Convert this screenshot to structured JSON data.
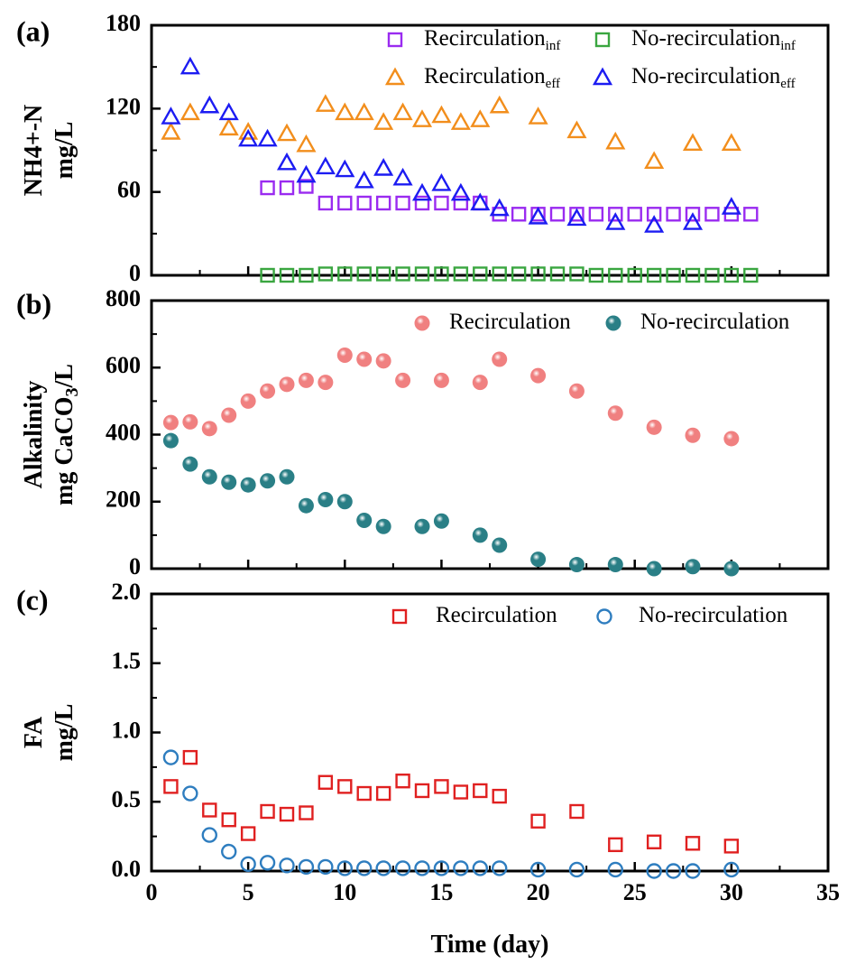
{
  "chart_data": [
    {
      "type": "scatter",
      "panel": "(a)",
      "ylabel_line1": "NH4+-N",
      "ylabel_line2": "mg/L",
      "xlim": [
        0,
        35
      ],
      "ylim": [
        0,
        180
      ],
      "yticks": [
        0,
        60,
        120,
        180
      ],
      "legend_position": "top-right",
      "series": [
        {
          "name": "Recirculation",
          "sub": "inf",
          "marker": "square",
          "color": "#9a2bf0",
          "x": [
            6,
            7,
            8,
            9,
            10,
            11,
            12,
            13,
            14,
            15,
            16,
            17,
            18,
            19,
            20,
            21,
            22,
            23,
            24,
            25,
            26,
            27,
            28,
            29,
            30,
            31
          ],
          "y": [
            63,
            63,
            64,
            52,
            52,
            52,
            52,
            52,
            52,
            52,
            52,
            52,
            44,
            44,
            44,
            44,
            44,
            44,
            44,
            44,
            44,
            44,
            44,
            44,
            44,
            44
          ]
        },
        {
          "name": "Recirculation",
          "sub": "eff",
          "marker": "triangle",
          "color": "#f28e1c",
          "x": [
            1,
            2,
            4,
            5,
            7,
            8,
            9,
            10,
            11,
            12,
            13,
            14,
            15,
            16,
            17,
            18,
            20,
            22,
            24,
            26,
            28,
            30
          ],
          "y": [
            103,
            117,
            106,
            103,
            102,
            94,
            123,
            117,
            117,
            110,
            117,
            112,
            115,
            110,
            112,
            122,
            114,
            104,
            96,
            82,
            95,
            95
          ]
        },
        {
          "name": "No-recirculation",
          "sub": "inf",
          "marker": "square",
          "color": "#3aa640",
          "x": [
            6,
            7,
            8,
            9,
            10,
            11,
            12,
            13,
            14,
            15,
            16,
            17,
            18,
            19,
            20,
            21,
            22,
            23,
            24,
            25,
            26,
            27,
            28,
            29,
            30,
            31
          ],
          "y": [
            0,
            0,
            0,
            1,
            1,
            1,
            1,
            1,
            1,
            1,
            1,
            1,
            1,
            1,
            1,
            1,
            1,
            0,
            0,
            0,
            0,
            0,
            0,
            0,
            0,
            0
          ]
        },
        {
          "name": "No-recirculation",
          "sub": "eff",
          "marker": "triangle",
          "color": "#1c1cf2",
          "x": [
            1,
            2,
            3,
            4,
            5,
            6,
            7,
            8,
            9,
            10,
            11,
            12,
            13,
            14,
            15,
            16,
            17,
            18,
            20,
            22,
            24,
            26,
            28,
            30
          ],
          "y": [
            114,
            150,
            122,
            117,
            98,
            98,
            81,
            72,
            78,
            76,
            68,
            77,
            70,
            59,
            66,
            59,
            52,
            48,
            42,
            41,
            38,
            36,
            38,
            49
          ]
        }
      ]
    },
    {
      "type": "scatter",
      "panel": "(b)",
      "ylabel_line1": "Alkalinity",
      "ylabel_line2": "mg CaCO3/L",
      "xlim": [
        0,
        35
      ],
      "ylim": [
        0,
        800
      ],
      "yticks": [
        0,
        200,
        400,
        600,
        800
      ],
      "legend_position": "top-right",
      "series": [
        {
          "name": "Recirculation",
          "marker": "sphere",
          "color": "#f08080",
          "x": [
            1,
            2,
            3,
            4,
            5,
            6,
            7,
            8,
            9,
            10,
            11,
            12,
            13,
            15,
            17,
            18,
            20,
            22,
            24,
            26,
            28,
            30
          ],
          "y": [
            436,
            438,
            418,
            458,
            500,
            530,
            550,
            562,
            556,
            637,
            625,
            620,
            562,
            562,
            556,
            625,
            576,
            530,
            464,
            422,
            398,
            388
          ]
        },
        {
          "name": "No-recirculation",
          "marker": "sphere",
          "color": "#2a7f86",
          "x": [
            1,
            2,
            3,
            4,
            5,
            6,
            7,
            8,
            9,
            10,
            11,
            12,
            14,
            15,
            17,
            18,
            20,
            22,
            24,
            26,
            28,
            30
          ],
          "y": [
            382,
            312,
            274,
            258,
            250,
            262,
            274,
            188,
            206,
            200,
            144,
            126,
            126,
            142,
            100,
            70,
            28,
            12,
            12,
            0,
            6,
            0
          ]
        }
      ]
    },
    {
      "type": "scatter",
      "panel": "(c)",
      "ylabel_line1": "FA",
      "ylabel_line2": "mg/L",
      "xlabel": "Time (day)",
      "xlim": [
        0,
        35
      ],
      "xticks": [
        0,
        5,
        10,
        15,
        20,
        25,
        30,
        35
      ],
      "ylim": [
        0,
        2.0
      ],
      "yticks": [
        0.0,
        0.5,
        1.0,
        1.5,
        2.0
      ],
      "yticklabels": [
        "0.0",
        "0.5",
        "1.0",
        "1.5",
        "2.0"
      ],
      "legend_position": "top-right",
      "series": [
        {
          "name": "Recirculation",
          "marker": "square",
          "color": "#e02020",
          "x": [
            1,
            2,
            3,
            4,
            5,
            6,
            7,
            8,
            9,
            10,
            11,
            12,
            13,
            14,
            15,
            16,
            17,
            18,
            20,
            22,
            24,
            26,
            28,
            30
          ],
          "y": [
            0.61,
            0.82,
            0.44,
            0.37,
            0.27,
            0.43,
            0.41,
            0.42,
            0.64,
            0.61,
            0.56,
            0.56,
            0.65,
            0.58,
            0.61,
            0.57,
            0.58,
            0.54,
            0.36,
            0.43,
            0.19,
            0.21,
            0.2,
            0.18
          ]
        },
        {
          "name": "No-recirculation",
          "marker": "circle",
          "color": "#2e7dbf",
          "x": [
            1,
            2,
            3,
            4,
            5,
            6,
            7,
            8,
            9,
            10,
            11,
            12,
            13,
            14,
            15,
            16,
            17,
            18,
            20,
            22,
            24,
            26,
            27,
            28,
            30
          ],
          "y": [
            0.82,
            0.56,
            0.26,
            0.14,
            0.05,
            0.06,
            0.04,
            0.03,
            0.03,
            0.02,
            0.02,
            0.02,
            0.02,
            0.02,
            0.02,
            0.02,
            0.02,
            0.02,
            0.01,
            0.01,
            0.01,
            0.0,
            0.0,
            0.0,
            0.01
          ]
        }
      ]
    }
  ]
}
